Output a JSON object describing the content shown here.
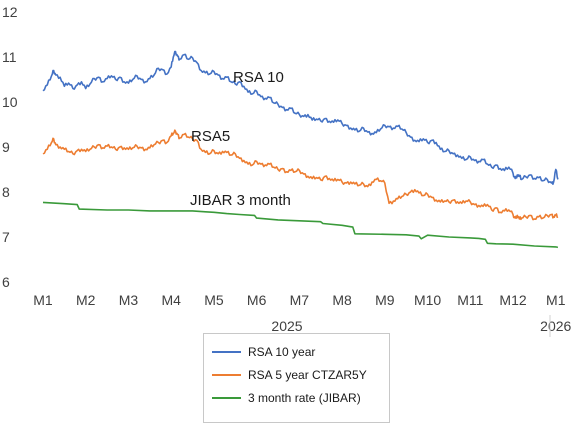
{
  "chart_data": {
    "type": "line",
    "y_ticks": [
      6,
      7,
      8,
      9,
      10,
      11,
      12
    ],
    "ylim": [
      6,
      12
    ],
    "x_tick_labels": [
      "M1",
      "M2",
      "M3",
      "M4",
      "M5",
      "M6",
      "M7",
      "M8",
      "M9",
      "M10",
      "M11",
      "M12",
      "M1"
    ],
    "x_group_labels": [
      "2025",
      "2026"
    ],
    "xlim": [
      0,
      12.1
    ],
    "grid": false,
    "legend_position": "bottom",
    "series": [
      {
        "name": "RSA 10 year",
        "annotation": "RSA 10",
        "color": "#4472c4",
        "x": [
          0,
          0.1,
          0.2,
          0.25,
          0.3,
          0.4,
          0.5,
          0.6,
          0.7,
          0.8,
          0.9,
          1.0,
          1.1,
          1.2,
          1.3,
          1.4,
          1.5,
          1.6,
          1.7,
          1.8,
          1.9,
          2.0,
          2.1,
          2.2,
          2.3,
          2.4,
          2.5,
          2.6,
          2.7,
          2.8,
          2.9,
          3.0,
          3.05,
          3.1,
          3.15,
          3.2,
          3.3,
          3.4,
          3.5,
          3.6,
          3.7,
          3.8,
          3.9,
          4.0,
          4.1,
          4.2,
          4.3,
          4.4,
          4.5,
          4.6,
          4.7,
          4.8,
          4.9,
          5.0,
          5.1,
          5.2,
          5.3,
          5.4,
          5.5,
          5.6,
          5.7,
          5.8,
          5.9,
          6.0,
          6.1,
          6.2,
          6.3,
          6.4,
          6.5,
          6.6,
          6.7,
          6.8,
          6.9,
          7.0,
          7.1,
          7.2,
          7.3,
          7.4,
          7.5,
          7.6,
          7.7,
          7.8,
          7.9,
          8.0,
          8.1,
          8.2,
          8.3,
          8.4,
          8.5,
          8.6,
          8.7,
          8.8,
          8.9,
          9.0,
          9.1,
          9.2,
          9.3,
          9.4,
          9.5,
          9.6,
          9.7,
          9.8,
          9.9,
          10.0,
          10.1,
          10.2,
          10.3,
          10.4,
          10.5,
          10.6,
          10.7,
          10.8,
          10.9,
          11.0,
          11.05,
          11.1,
          11.15,
          11.2,
          11.3,
          11.4,
          11.5,
          11.6,
          11.7,
          11.8,
          11.9,
          11.95,
          12.0,
          12.05
        ],
        "values": [
          10.25,
          10.38,
          10.58,
          10.7,
          10.6,
          10.55,
          10.35,
          10.42,
          10.3,
          10.38,
          10.45,
          10.3,
          10.4,
          10.52,
          10.55,
          10.45,
          10.52,
          10.58,
          10.5,
          10.55,
          10.45,
          10.42,
          10.5,
          10.58,
          10.5,
          10.45,
          10.52,
          10.6,
          10.75,
          10.72,
          10.62,
          10.78,
          11.0,
          11.12,
          11.02,
          10.95,
          11.05,
          10.95,
          10.98,
          10.88,
          10.7,
          10.65,
          10.62,
          10.68,
          10.6,
          10.52,
          10.55,
          10.45,
          10.4,
          10.45,
          10.35,
          10.22,
          10.18,
          10.24,
          10.12,
          10.08,
          10.1,
          9.98,
          9.95,
          9.88,
          9.83,
          9.86,
          9.75,
          9.72,
          9.68,
          9.72,
          9.6,
          9.62,
          9.58,
          9.63,
          9.57,
          9.55,
          9.6,
          9.52,
          9.48,
          9.42,
          9.38,
          9.35,
          9.42,
          9.33,
          9.3,
          9.32,
          9.4,
          9.48,
          9.45,
          9.42,
          9.46,
          9.4,
          9.32,
          9.22,
          9.15,
          9.12,
          9.18,
          9.1,
          9.15,
          9.1,
          8.95,
          8.9,
          8.92,
          8.85,
          8.82,
          8.75,
          8.72,
          8.78,
          8.7,
          8.68,
          8.72,
          8.62,
          8.55,
          8.6,
          8.52,
          8.48,
          8.55,
          8.42,
          8.3,
          8.38,
          8.35,
          8.28,
          8.34,
          8.38,
          8.3,
          8.32,
          8.25,
          8.28,
          8.2,
          8.22,
          8.5,
          8.28
        ]
      },
      {
        "name": "RSA 5 year CTZAR5Y",
        "annotation": "RSA5",
        "color": "#ed7d31",
        "x": [
          0,
          0.1,
          0.2,
          0.25,
          0.3,
          0.4,
          0.5,
          0.6,
          0.7,
          0.8,
          0.9,
          1.0,
          1.1,
          1.2,
          1.3,
          1.4,
          1.5,
          1.6,
          1.7,
          1.8,
          1.9,
          2.0,
          2.1,
          2.2,
          2.3,
          2.4,
          2.5,
          2.6,
          2.7,
          2.8,
          2.9,
          3.0,
          3.05,
          3.1,
          3.15,
          3.2,
          3.3,
          3.4,
          3.5,
          3.6,
          3.7,
          3.8,
          3.9,
          4.0,
          4.1,
          4.2,
          4.3,
          4.4,
          4.5,
          4.6,
          4.7,
          4.8,
          4.9,
          5.0,
          5.1,
          5.2,
          5.3,
          5.4,
          5.5,
          5.6,
          5.7,
          5.8,
          5.9,
          6.0,
          6.1,
          6.2,
          6.3,
          6.4,
          6.5,
          6.6,
          6.7,
          6.8,
          6.9,
          7.0,
          7.1,
          7.2,
          7.3,
          7.4,
          7.5,
          7.6,
          7.7,
          7.8,
          7.9,
          8.0,
          8.1,
          8.2,
          8.3,
          8.4,
          8.5,
          8.6,
          8.7,
          8.8,
          8.9,
          9.0,
          9.1,
          9.2,
          9.3,
          9.4,
          9.5,
          9.6,
          9.7,
          9.8,
          9.9,
          10.0,
          10.1,
          10.2,
          10.3,
          10.4,
          10.5,
          10.6,
          10.7,
          10.8,
          10.9,
          11.0,
          11.05,
          11.1,
          11.15,
          11.2,
          11.3,
          11.4,
          11.5,
          11.6,
          11.7,
          11.8,
          11.9,
          11.95,
          12.0,
          12.05
        ],
        "values": [
          8.85,
          8.95,
          9.1,
          9.18,
          9.05,
          9.0,
          8.95,
          8.9,
          8.85,
          8.92,
          8.95,
          8.9,
          8.95,
          9.0,
          9.05,
          8.98,
          9.02,
          9.0,
          8.95,
          9.0,
          8.98,
          8.95,
          8.98,
          9.02,
          8.98,
          8.95,
          8.98,
          9.05,
          9.1,
          9.15,
          9.1,
          9.25,
          9.3,
          9.35,
          9.28,
          9.2,
          9.28,
          9.22,
          9.18,
          9.15,
          8.95,
          8.88,
          8.85,
          8.92,
          8.85,
          8.9,
          8.88,
          8.82,
          8.85,
          8.75,
          8.7,
          8.62,
          8.6,
          8.68,
          8.62,
          8.6,
          8.62,
          8.55,
          8.5,
          8.52,
          8.45,
          8.48,
          8.45,
          8.48,
          8.4,
          8.35,
          8.3,
          8.32,
          8.27,
          8.35,
          8.3,
          8.25,
          8.28,
          8.22,
          8.2,
          8.22,
          8.18,
          8.15,
          8.18,
          8.12,
          8.22,
          8.28,
          8.25,
          8.2,
          7.75,
          7.8,
          7.85,
          7.9,
          7.95,
          8.0,
          8.05,
          7.98,
          7.92,
          7.95,
          7.88,
          7.82,
          7.78,
          7.8,
          7.78,
          7.82,
          7.78,
          7.75,
          7.8,
          7.78,
          7.72,
          7.7,
          7.68,
          7.72,
          7.6,
          7.65,
          7.55,
          7.58,
          7.6,
          7.5,
          7.42,
          7.48,
          7.4,
          7.42,
          7.45,
          7.48,
          7.4,
          7.45,
          7.42,
          7.48,
          7.5,
          7.45,
          7.48,
          7.45
        ]
      },
      {
        "name": "3 month rate (JIBAR)",
        "annotation": "JIBAR 3 month",
        "color": "#3a9a3a",
        "x": [
          0,
          0.5,
          0.8,
          0.85,
          1.5,
          2.0,
          2.5,
          3.0,
          3.5,
          3.8,
          4.0,
          4.3,
          4.6,
          4.95,
          5.0,
          5.5,
          6.0,
          6.5,
          6.55,
          7.0,
          7.25,
          7.3,
          8.0,
          8.5,
          8.8,
          8.85,
          9.0,
          9.5,
          10.0,
          10.2,
          10.35,
          10.4,
          10.6,
          11.0,
          11.5,
          12.0,
          12.05
        ],
        "values": [
          7.77,
          7.74,
          7.72,
          7.62,
          7.6,
          7.6,
          7.58,
          7.58,
          7.58,
          7.56,
          7.55,
          7.52,
          7.5,
          7.48,
          7.42,
          7.38,
          7.36,
          7.34,
          7.3,
          7.26,
          7.22,
          7.07,
          7.06,
          7.05,
          7.02,
          6.96,
          7.04,
          7.0,
          6.98,
          6.97,
          6.95,
          6.86,
          6.85,
          6.84,
          6.8,
          6.78,
          6.77
        ]
      }
    ]
  }
}
